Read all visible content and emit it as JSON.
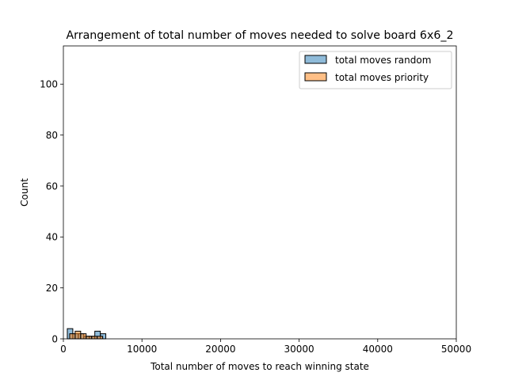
{
  "chart_data": {
    "type": "histogram",
    "title": "Arrangement of total number of moves needed to solve board 6x6_2",
    "xlabel": "Total number of moves to reach winning state",
    "ylabel": "Count",
    "xlim": [
      0,
      50000
    ],
    "ylim": [
      0,
      115
    ],
    "xticks": [
      0,
      10000,
      20000,
      30000,
      40000,
      50000
    ],
    "yticks": [
      0,
      20,
      40,
      60,
      80,
      100
    ],
    "legend_position": "top-right",
    "series": [
      {
        "name": "total moves random",
        "color": "#1f77b4",
        "bins": [
          {
            "x0": 500,
            "x1": 1200,
            "count": 4
          },
          {
            "x0": 1200,
            "x1": 1900,
            "count": 2
          },
          {
            "x0": 1900,
            "x1": 2600,
            "count": 2
          },
          {
            "x0": 2600,
            "x1": 3300,
            "count": 1
          },
          {
            "x0": 3300,
            "x1": 4000,
            "count": 1
          },
          {
            "x0": 4000,
            "x1": 4700,
            "count": 3
          },
          {
            "x0": 4700,
            "x1": 5400,
            "count": 2
          }
        ]
      },
      {
        "name": "total moves priority",
        "color": "#ff7f0e",
        "bins": [
          {
            "x0": 800,
            "x1": 1500,
            "count": 2
          },
          {
            "x0": 1500,
            "x1": 2200,
            "count": 3
          },
          {
            "x0": 2200,
            "x1": 2900,
            "count": 2
          },
          {
            "x0": 2900,
            "x1": 3600,
            "count": 1
          },
          {
            "x0": 3600,
            "x1": 4300,
            "count": 1
          },
          {
            "x0": 4300,
            "x1": 5000,
            "count": 1
          }
        ]
      }
    ]
  }
}
